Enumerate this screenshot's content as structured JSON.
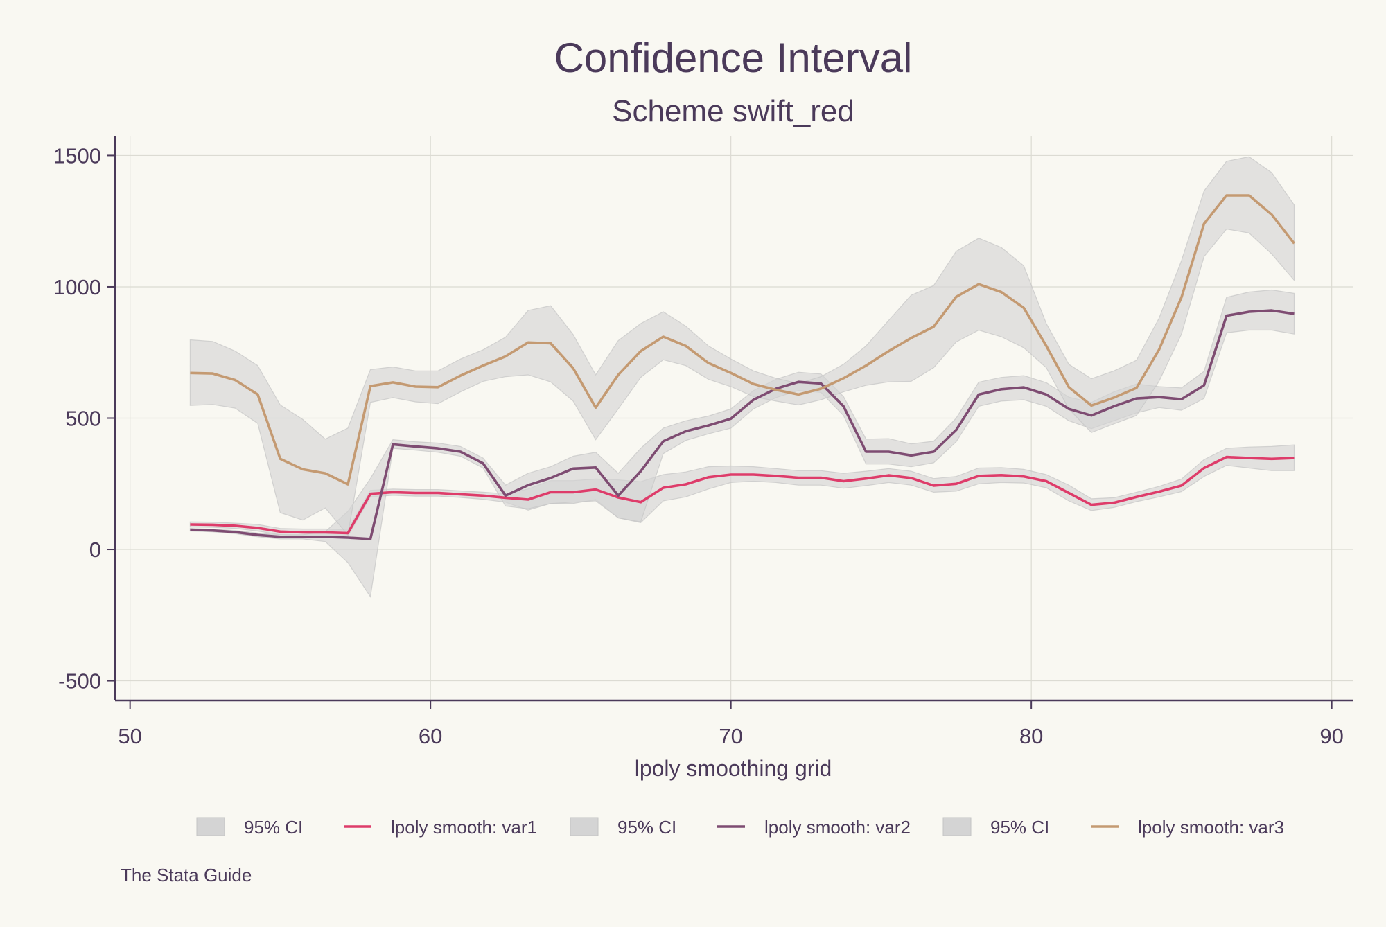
{
  "chart_data": {
    "type": "area",
    "title": "Confidence Interval",
    "subtitle": "Scheme swift_red",
    "xlabel": "lpoly smoothing grid",
    "ylabel": "",
    "note": "The Stata Guide",
    "xlim": [
      49.5,
      90.7
    ],
    "ylim": [
      -575,
      1575
    ],
    "xticks": [
      50,
      60,
      70,
      80,
      90
    ],
    "yticks": [
      -500,
      0,
      500,
      1000,
      1500
    ],
    "grid": true,
    "legend_position": "bottom",
    "colors": {
      "background": "#f9f8f2",
      "text": "#4b3a5a",
      "grid": "#dcdbd3",
      "ci_fill": "#d4d4d4",
      "var1": "#de3c6a",
      "var2": "#7e4c72",
      "var3": "#c49a72"
    },
    "legend": [
      {
        "label": "95% CI",
        "kind": "area"
      },
      {
        "label": "lpoly smooth: var1",
        "kind": "line",
        "series": "var1"
      },
      {
        "label": "95% CI",
        "kind": "area"
      },
      {
        "label": "lpoly smooth: var2",
        "kind": "line",
        "series": "var2"
      },
      {
        "label": "95% CI",
        "kind": "area"
      },
      {
        "label": "lpoly smooth: var3",
        "kind": "line",
        "series": "var3"
      }
    ],
    "x": [
      52,
      52.75,
      53.5,
      54.25,
      55,
      55.75,
      56.5,
      57.25,
      58,
      58.75,
      59.5,
      60.25,
      61,
      61.75,
      62.5,
      63.25,
      64,
      64.75,
      65.5,
      66.25,
      67,
      67.75,
      68.5,
      69.25,
      70,
      70.75,
      71.5,
      72.25,
      73,
      73.75,
      74.5,
      75.25,
      76,
      76.75,
      77.5,
      78.25,
      79,
      79.75,
      80.5,
      81.25,
      82,
      82.75,
      83.5,
      84.25,
      85,
      85.75,
      86.5,
      87.25,
      88,
      88.75
    ],
    "series": [
      {
        "name": "lpoly smooth: var1",
        "key": "var1",
        "values": [
          95,
          94,
          90,
          82,
          68,
          65,
          65,
          62,
          212,
          218,
          215,
          215,
          210,
          205,
          197,
          190,
          218,
          218,
          228,
          198,
          180,
          235,
          248,
          275,
          285,
          285,
          280,
          273,
          273,
          260,
          270,
          282,
          272,
          243,
          250,
          280,
          283,
          278,
          260,
          215,
          170,
          178,
          200,
          220,
          243,
          310,
          352,
          348,
          345,
          348
        ],
        "ci_low": [
          85,
          84,
          80,
          70,
          56,
          52,
          52,
          50,
          200,
          206,
          203,
          203,
          198,
          191,
          180,
          150,
          175,
          175,
          190,
          120,
          102,
          185,
          200,
          230,
          255,
          260,
          255,
          245,
          245,
          233,
          243,
          255,
          245,
          218,
          222,
          250,
          255,
          253,
          235,
          185,
          148,
          160,
          182,
          200,
          220,
          278,
          320,
          310,
          300,
          300
        ],
        "ci_high": [
          105,
          104,
          100,
          95,
          80,
          78,
          78,
          75,
          225,
          230,
          228,
          228,
          223,
          218,
          212,
          230,
          262,
          262,
          268,
          265,
          258,
          285,
          295,
          315,
          318,
          315,
          308,
          300,
          300,
          290,
          298,
          308,
          298,
          270,
          278,
          310,
          312,
          305,
          285,
          245,
          193,
          197,
          218,
          240,
          268,
          342,
          385,
          390,
          392,
          398
        ]
      },
      {
        "name": "lpoly smooth: var2",
        "key": "var2",
        "values": [
          75,
          72,
          66,
          55,
          48,
          48,
          48,
          45,
          40,
          400,
          392,
          385,
          372,
          328,
          205,
          245,
          272,
          308,
          312,
          205,
          298,
          412,
          450,
          472,
          498,
          570,
          612,
          638,
          632,
          545,
          372,
          372,
          358,
          372,
          455,
          590,
          610,
          617,
          590,
          535,
          510,
          545,
          575,
          580,
          572,
          625,
          890,
          905,
          910,
          897
        ],
        "ci_low": [
          70,
          67,
          60,
          48,
          40,
          40,
          30,
          -50,
          -180,
          385,
          378,
          370,
          355,
          310,
          165,
          155,
          175,
          180,
          185,
          120,
          105,
          365,
          415,
          440,
          462,
          535,
          578,
          605,
          598,
          510,
          325,
          325,
          315,
          330,
          410,
          545,
          565,
          570,
          545,
          490,
          460,
          490,
          520,
          540,
          530,
          575,
          825,
          835,
          835,
          820
        ],
        "ci_high": [
          80,
          77,
          72,
          62,
          56,
          56,
          68,
          145,
          270,
          418,
          410,
          405,
          392,
          348,
          245,
          290,
          315,
          355,
          370,
          290,
          385,
          462,
          490,
          508,
          535,
          605,
          648,
          675,
          668,
          582,
          420,
          422,
          402,
          412,
          500,
          637,
          655,
          662,
          635,
          580,
          560,
          600,
          630,
          620,
          615,
          678,
          960,
          980,
          988,
          975
        ]
      },
      {
        "name": "lpoly smooth: var3",
        "key": "var3",
        "values": [
          672,
          670,
          645,
          590,
          345,
          305,
          290,
          248,
          622,
          636,
          620,
          618,
          662,
          700,
          735,
          788,
          785,
          690,
          540,
          665,
          755,
          810,
          775,
          710,
          672,
          630,
          608,
          590,
          612,
          652,
          700,
          755,
          805,
          848,
          962,
          1010,
          980,
          920,
          775,
          618,
          548,
          578,
          615,
          760,
          960,
          1240,
          1348,
          1348,
          1275,
          1165
        ],
        "ci_low": [
          548,
          552,
          538,
          480,
          140,
          112,
          158,
          55,
          560,
          578,
          562,
          555,
          600,
          640,
          658,
          665,
          638,
          565,
          418,
          535,
          655,
          722,
          700,
          648,
          620,
          582,
          565,
          550,
          570,
          600,
          625,
          638,
          640,
          692,
          790,
          835,
          810,
          768,
          692,
          535,
          445,
          478,
          510,
          640,
          820,
          1115,
          1220,
          1205,
          1125,
          1025
        ],
        "ci_high": [
          798,
          792,
          755,
          700,
          550,
          495,
          420,
          462,
          685,
          695,
          680,
          680,
          725,
          760,
          808,
          910,
          928,
          818,
          665,
          795,
          860,
          905,
          850,
          775,
          725,
          680,
          652,
          632,
          658,
          705,
          775,
          872,
          968,
          1005,
          1135,
          1185,
          1150,
          1080,
          860,
          705,
          650,
          680,
          720,
          880,
          1100,
          1365,
          1478,
          1495,
          1435,
          1312
        ]
      }
    ]
  }
}
